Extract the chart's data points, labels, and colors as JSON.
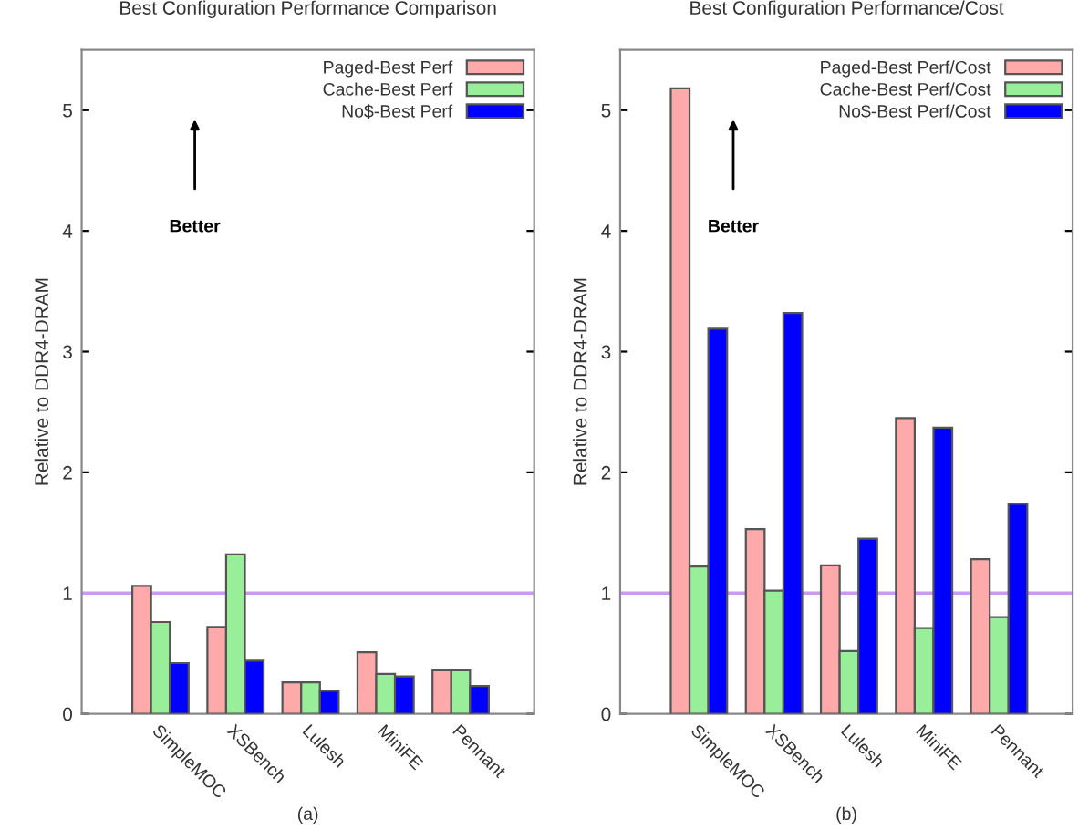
{
  "chart_data": [
    {
      "type": "bar",
      "title": "Best Configuration Performance Comparison",
      "xlabel": "(a)",
      "ylabel": "Relative to DDR4-DRAM",
      "categories": [
        "SimpleMOC",
        "XSBench",
        "Lulesh",
        "MiniFE",
        "Pennant"
      ],
      "series": [
        {
          "name": "Paged-Best Perf",
          "color": "#ffaaaa",
          "values": [
            1.06,
            0.72,
            0.26,
            0.51,
            0.36
          ]
        },
        {
          "name": "Cache-Best Perf",
          "color": "#99ee99",
          "values": [
            0.76,
            1.32,
            0.26,
            0.33,
            0.36
          ]
        },
        {
          "name": "No$-Best Perf",
          "color": "#0000ff",
          "values": [
            0.42,
            0.44,
            0.19,
            0.31,
            0.23
          ]
        }
      ],
      "ylim": [
        0,
        5.5
      ],
      "yticks": [
        0,
        1,
        2,
        3,
        4,
        5
      ],
      "ref_lines": [
        {
          "axis": "y",
          "value": 1,
          "color": "#cc99ee"
        }
      ],
      "annotations": [
        "Better"
      ],
      "legend": "top right",
      "grid": false
    },
    {
      "type": "bar",
      "title": "Best Configuration Performance/Cost",
      "xlabel": "(b)",
      "ylabel": "Relative to DDR4-DRAM",
      "categories": [
        "SimpleMOC",
        "XSBench",
        "Lulesh",
        "MiniFE",
        "Pennant"
      ],
      "series": [
        {
          "name": "Paged-Best Perf/Cost",
          "color": "#ffaaaa",
          "values": [
            5.18,
            1.53,
            1.23,
            2.45,
            1.28
          ]
        },
        {
          "name": "Cache-Best Perf/Cost",
          "color": "#99ee99",
          "values": [
            1.22,
            1.02,
            0.52,
            0.71,
            0.8
          ]
        },
        {
          "name": "No$-Best Perf/Cost",
          "color": "#0000ff",
          "values": [
            3.19,
            3.32,
            1.45,
            2.37,
            1.74
          ]
        }
      ],
      "ylim": [
        0,
        5.5
      ],
      "yticks": [
        0,
        1,
        2,
        3,
        4,
        5
      ],
      "ref_lines": [
        {
          "axis": "y",
          "value": 1,
          "color": "#cc99ee"
        }
      ],
      "annotations": [
        "Better"
      ],
      "legend": "top right",
      "grid": false
    }
  ]
}
